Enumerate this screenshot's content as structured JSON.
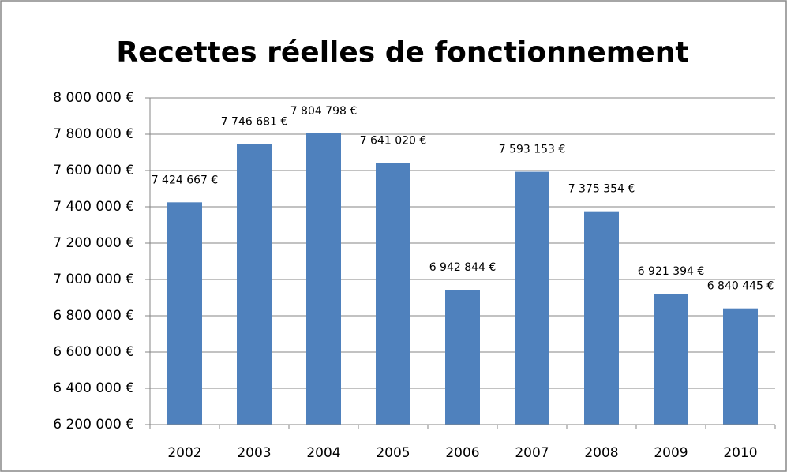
{
  "chart_data": {
    "type": "bar",
    "title": "Recettes réelles de fonctionnement",
    "categories": [
      "2002",
      "2003",
      "2004",
      "2005",
      "2006",
      "2007",
      "2008",
      "2009",
      "2010"
    ],
    "values": [
      7424667,
      7746681,
      7804798,
      7641020,
      6942844,
      7593153,
      7375354,
      6921394,
      6840445
    ],
    "value_labels": [
      "7 424 667 €",
      "7 746 681 €",
      "7 804 798 €",
      "7 641 020 €",
      "6 942 844 €",
      "7 593 153 €",
      "7 375 354 €",
      "6 921 394 €",
      "6 840 445 €"
    ],
    "color": "#4f81bd",
    "ylim": [
      6200000,
      8000000
    ],
    "yticks": [
      {
        "value": 6200000,
        "label": "6 200 000 €"
      },
      {
        "value": 6400000,
        "label": "6 400 000 €"
      },
      {
        "value": 6600000,
        "label": "6 600 000 €"
      },
      {
        "value": 6800000,
        "label": "6 800 000 €"
      },
      {
        "value": 7000000,
        "label": "7 000 000 €"
      },
      {
        "value": 7200000,
        "label": "7 200 000 €"
      },
      {
        "value": 7400000,
        "label": "7 400 000 €"
      },
      {
        "value": 7600000,
        "label": "7 600 000 €"
      },
      {
        "value": 7800000,
        "label": "7 800 000 €"
      },
      {
        "value": 8000000,
        "label": "8 000 000 €"
      }
    ],
    "grid": true
  }
}
